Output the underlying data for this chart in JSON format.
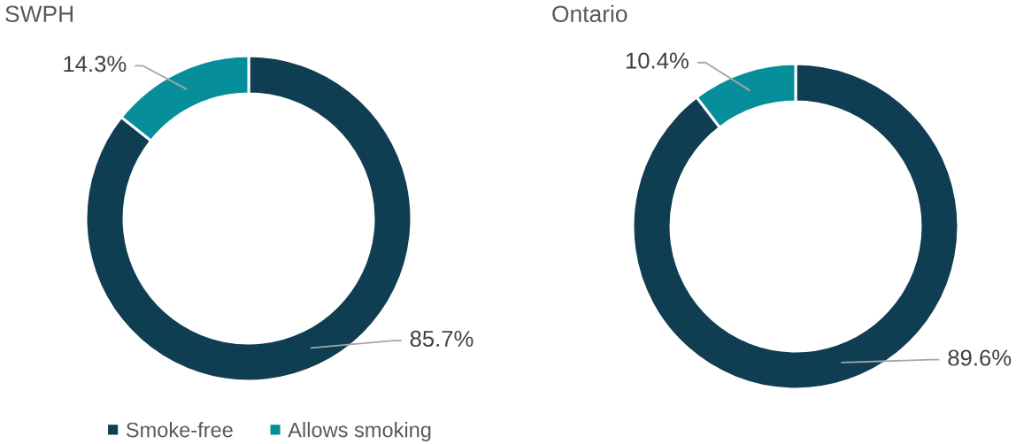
{
  "chart_data": [
    {
      "type": "donut",
      "title": "SWPH",
      "categories": [
        "Smoke-free",
        "Allows smoking"
      ],
      "values": [
        85.7,
        14.3
      ],
      "colors": [
        "#0f3d52",
        "#068f9a"
      ],
      "value_labels": [
        "85.7%",
        "14.3%"
      ],
      "legend": "bottom"
    },
    {
      "type": "donut",
      "title": "Ontario",
      "categories": [
        null,
        null
      ],
      "values": [
        89.6,
        10.4
      ],
      "colors": [
        "#0f3d52",
        "#068f9a"
      ],
      "value_labels": [
        "89.6%",
        "10.4%"
      ]
    }
  ]
}
